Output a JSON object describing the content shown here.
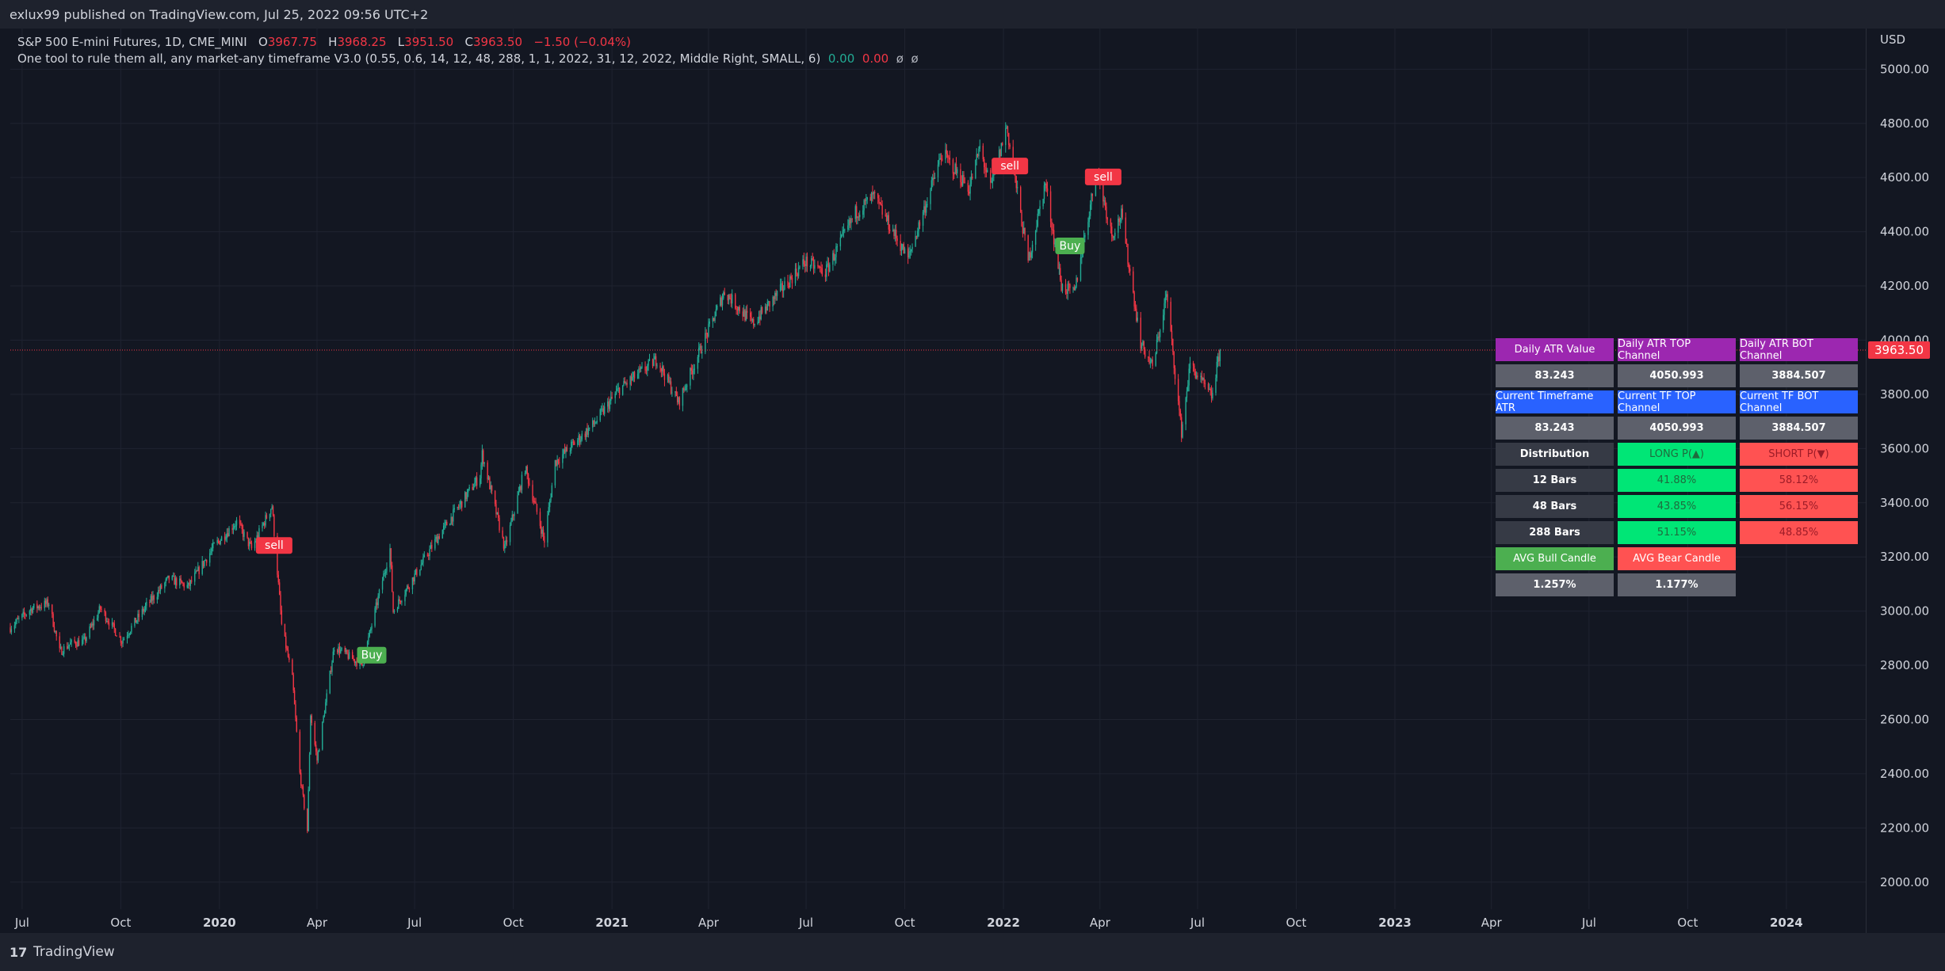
{
  "header": {
    "published": "exlux99 published on TradingView.com, Jul 25, 2022 09:56 UTC+2"
  },
  "legend": {
    "symbol": "S&P 500 E-mini Futures, 1D, CME_MINI",
    "o_label": "O",
    "o": "3967.75",
    "h_label": "H",
    "h": "3968.25",
    "l_label": "L",
    "l": "3951.50",
    "c_label": "C",
    "c": "3963.50",
    "change": "−1.50 (−0.04%)",
    "indicator": "One tool to rule them all, any market-any timeframe V3.0 (0.55, 0.6, 14, 12, 48, 288, 1, 1, 2022, 31, 12, 2022, Middle Right, SMALL, 6)",
    "ind_v1": "0.00",
    "ind_v2": "0.00",
    "ind_v3": "ø",
    "ind_v4": "ø"
  },
  "chart_data": {
    "type": "candlestick",
    "currency": "USD",
    "last_price": 3963.5,
    "last_price_label": "3963.50",
    "ylim": [
      1900,
      5150
    ],
    "y_ticks": [
      2000,
      2200,
      2400,
      2600,
      2800,
      3000,
      3200,
      3400,
      3600,
      3800,
      4000,
      4200,
      4400,
      4600,
      4800,
      5000
    ],
    "y_tick_labels": [
      "2000.00",
      "2200.00",
      "2400.00",
      "2600.00",
      "2800.00",
      "3000.00",
      "3200.00",
      "3400.00",
      "3600.00",
      "3800.00",
      "4000.00",
      "4200.00",
      "4400.00",
      "4600.00",
      "4800.00",
      "5000.00"
    ],
    "x_ticks": [
      {
        "label": "Jul",
        "date": "2019-07-01",
        "bold": false
      },
      {
        "label": "Oct",
        "date": "2019-10-01",
        "bold": false
      },
      {
        "label": "2020",
        "date": "2020-01-01",
        "bold": true
      },
      {
        "label": "Apr",
        "date": "2020-04-01",
        "bold": false
      },
      {
        "label": "Jul",
        "date": "2020-07-01",
        "bold": false
      },
      {
        "label": "Oct",
        "date": "2020-10-01",
        "bold": false
      },
      {
        "label": "2021",
        "date": "2021-01-01",
        "bold": true
      },
      {
        "label": "Apr",
        "date": "2021-04-01",
        "bold": false
      },
      {
        "label": "Jul",
        "date": "2021-07-01",
        "bold": false
      },
      {
        "label": "Oct",
        "date": "2021-10-01",
        "bold": false
      },
      {
        "label": "2022",
        "date": "2022-01-01",
        "bold": true
      },
      {
        "label": "Apr",
        "date": "2022-04-01",
        "bold": false
      },
      {
        "label": "Jul",
        "date": "2022-07-01",
        "bold": false
      },
      {
        "label": "Oct",
        "date": "2022-10-01",
        "bold": false
      },
      {
        "label": "2023",
        "date": "2023-01-01",
        "bold": true
      },
      {
        "label": "Apr",
        "date": "2023-04-01",
        "bold": false
      },
      {
        "label": "Jul",
        "date": "2023-07-01",
        "bold": false
      },
      {
        "label": "Oct",
        "date": "2023-10-01",
        "bold": false
      },
      {
        "label": "2024",
        "date": "2024-01-01",
        "bold": true
      }
    ],
    "x_range": [
      "2019-06-20",
      "2024-03-15"
    ],
    "close_path": [
      [
        "2019-06-20",
        2940
      ],
      [
        "2019-07-10",
        3010
      ],
      [
        "2019-07-26",
        3030
      ],
      [
        "2019-08-05",
        2850
      ],
      [
        "2019-08-15",
        2880
      ],
      [
        "2019-08-28",
        2890
      ],
      [
        "2019-09-12",
        3010
      ],
      [
        "2019-10-02",
        2890
      ],
      [
        "2019-10-25",
        3020
      ],
      [
        "2019-11-15",
        3120
      ],
      [
        "2019-12-03",
        3090
      ],
      [
        "2019-12-27",
        3240
      ],
      [
        "2020-01-17",
        3330
      ],
      [
        "2020-01-31",
        3230
      ],
      [
        "2020-02-19",
        3390
      ],
      [
        "2020-02-28",
        2950
      ],
      [
        "2020-03-09",
        2750
      ],
      [
        "2020-03-16",
        2400
      ],
      [
        "2020-03-23",
        2190
      ],
      [
        "2020-03-26",
        2620
      ],
      [
        "2020-04-01",
        2450
      ],
      [
        "2020-04-17",
        2870
      ],
      [
        "2020-05-13",
        2800
      ],
      [
        "2020-06-08",
        3230
      ],
      [
        "2020-06-11",
        3000
      ],
      [
        "2020-07-22",
        3270
      ],
      [
        "2020-08-31",
        3500
      ],
      [
        "2020-09-02",
        3580
      ],
      [
        "2020-09-23",
        3230
      ],
      [
        "2020-10-12",
        3530
      ],
      [
        "2020-10-30",
        3260
      ],
      [
        "2020-11-09",
        3550
      ],
      [
        "2020-12-15",
        3690
      ],
      [
        "2021-01-08",
        3820
      ],
      [
        "2021-02-12",
        3930
      ],
      [
        "2021-03-04",
        3770
      ],
      [
        "2021-04-16",
        4180
      ],
      [
        "2021-05-12",
        4060
      ],
      [
        "2021-06-30",
        4290
      ],
      [
        "2021-07-19",
        4250
      ],
      [
        "2021-08-16",
        4470
      ],
      [
        "2021-09-02",
        4530
      ],
      [
        "2021-10-04",
        4300
      ],
      [
        "2021-11-05",
        4690
      ],
      [
        "2021-11-30",
        4560
      ],
      [
        "2021-12-10",
        4710
      ],
      [
        "2021-12-20",
        4560
      ],
      [
        "2022-01-04",
        4790
      ],
      [
        "2022-01-24",
        4290
      ],
      [
        "2022-02-09",
        4580
      ],
      [
        "2022-02-24",
        4200
      ],
      [
        "2022-03-08",
        4170
      ],
      [
        "2022-03-29",
        4630
      ],
      [
        "2022-04-12",
        4390
      ],
      [
        "2022-04-21",
        4460
      ],
      [
        "2022-05-09",
        3990
      ],
      [
        "2022-05-20",
        3900
      ],
      [
        "2022-06-02",
        4170
      ],
      [
        "2022-06-16",
        3660
      ],
      [
        "2022-06-24",
        3910
      ],
      [
        "2022-07-14",
        3790
      ],
      [
        "2022-07-22",
        3963.5
      ]
    ],
    "signals": [
      {
        "label": "sell",
        "date": "2020-02-21",
        "price": 3200,
        "color": "#f23645",
        "position": "above"
      },
      {
        "label": "Buy",
        "date": "2020-05-22",
        "price": 2880,
        "color": "#4caf50",
        "position": "below"
      },
      {
        "label": "sell",
        "date": "2022-01-07",
        "price": 4600,
        "color": "#f23645",
        "position": "above"
      },
      {
        "label": "Buy",
        "date": "2022-03-04",
        "price": 4390,
        "color": "#4caf50",
        "position": "below"
      },
      {
        "label": "sell",
        "date": "2022-04-04",
        "price": 4560,
        "color": "#f23645",
        "position": "above"
      }
    ]
  },
  "atr_table": {
    "rows": [
      [
        {
          "text": "Daily ATR Value",
          "style": "purple"
        },
        {
          "text": "Daily ATR TOP Channel",
          "style": "purple"
        },
        {
          "text": "Daily ATR BOT Channel",
          "style": "purple"
        }
      ],
      [
        {
          "text": "83.243",
          "style": "gray"
        },
        {
          "text": "4050.993",
          "style": "gray"
        },
        {
          "text": "3884.507",
          "style": "gray"
        }
      ],
      [
        {
          "text": "Current Timeframe ATR",
          "style": "blue"
        },
        {
          "text": "Current TF TOP Channel",
          "style": "blue"
        },
        {
          "text": "Current TF BOT Channel",
          "style": "blue"
        }
      ],
      [
        {
          "text": "83.243",
          "style": "gray"
        },
        {
          "text": "4050.993",
          "style": "gray"
        },
        {
          "text": "3884.507",
          "style": "gray"
        }
      ],
      [
        {
          "text": "Distribution",
          "style": "dark"
        },
        {
          "text": "LONG P(▲)",
          "style": "lime"
        },
        {
          "text": "SHORT P(▼)",
          "style": "red"
        }
      ],
      [
        {
          "text": "12 Bars",
          "style": "dark"
        },
        {
          "text": "41.88%",
          "style": "lime"
        },
        {
          "text": "58.12%",
          "style": "red"
        }
      ],
      [
        {
          "text": "48 Bars",
          "style": "dark"
        },
        {
          "text": "43.85%",
          "style": "lime"
        },
        {
          "text": "56.15%",
          "style": "red"
        }
      ],
      [
        {
          "text": "288 Bars",
          "style": "dark"
        },
        {
          "text": "51.15%",
          "style": "lime"
        },
        {
          "text": "48.85%",
          "style": "red"
        }
      ],
      [
        {
          "text": "AVG Bull Candle",
          "style": "green"
        },
        {
          "text": "AVG Bear Candle",
          "style": "redw"
        }
      ],
      [
        {
          "text": "1.257%",
          "style": "gray"
        },
        {
          "text": "1.177%",
          "style": "gray"
        }
      ]
    ]
  },
  "footer": {
    "brand": "TradingView",
    "mark": "17"
  },
  "colors": {
    "bull": "#22ab94",
    "bear": "#f23645",
    "grid": "#1f2330",
    "axis_text": "#d1d4dc"
  }
}
